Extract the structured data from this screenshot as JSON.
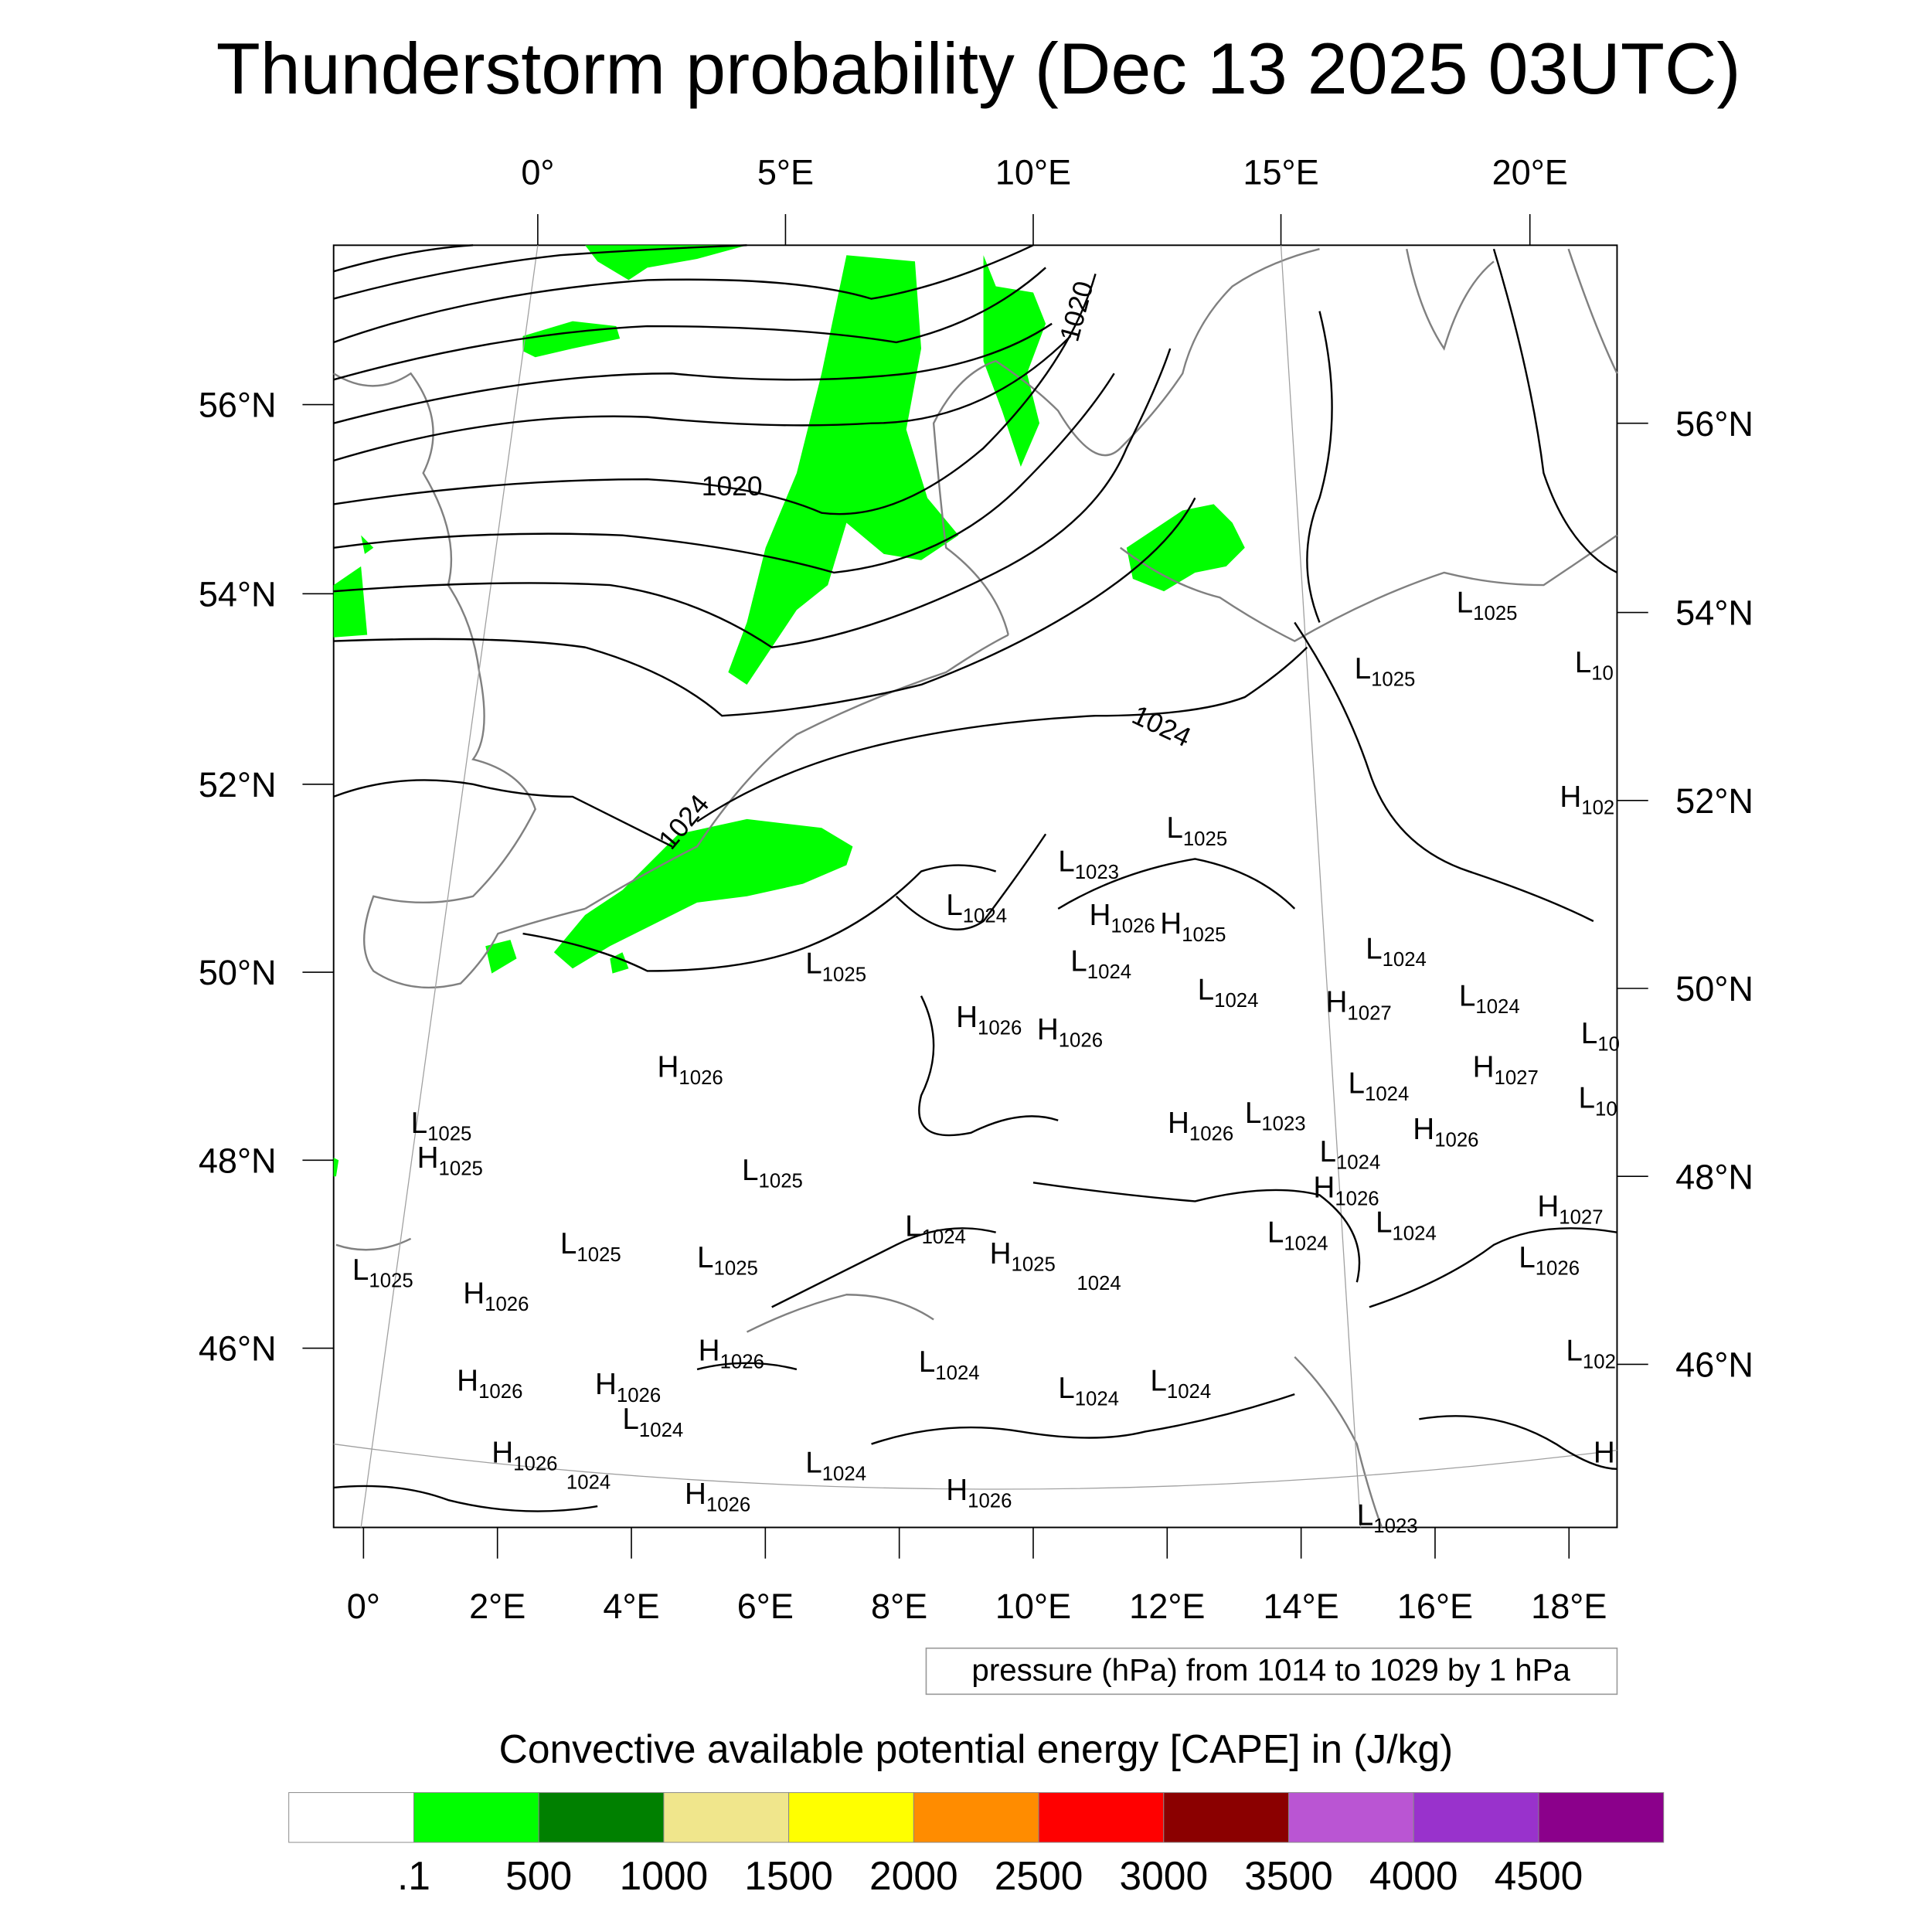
{
  "title": "Thunderstorm probability (Dec 13 2025 03UTC)",
  "chart_data": {
    "type": "map",
    "title": "Thunderstorm probability (Dec 13 2025 03UTC)",
    "top_lon_ticks": [
      "0°",
      "5°E",
      "10°E",
      "15°E",
      "20°E"
    ],
    "bottom_lon_ticks": [
      "0°",
      "2°E",
      "4°E",
      "6°E",
      "8°E",
      "10°E",
      "12°E",
      "14°E",
      "16°E",
      "18°E"
    ],
    "left_lat_ticks": [
      "56°N",
      "54°N",
      "52°N",
      "50°N",
      "48°N",
      "46°N"
    ],
    "right_lat_ticks": [
      "56°N",
      "54°N",
      "52°N",
      "50°N",
      "48°N",
      "46°N"
    ],
    "contour_info": "pressure (hPa) from 1014 to 1029 by 1 hPa",
    "contour_labels": [
      "1020",
      "1020",
      "1024",
      "1024"
    ],
    "pressure_centers": [
      {
        "t": "L",
        "v": "1025"
      },
      {
        "t": "L",
        "v": "1025"
      },
      {
        "t": "L",
        "v": "10"
      },
      {
        "t": "H",
        "v": "102"
      },
      {
        "t": "L",
        "v": "1025"
      },
      {
        "t": "L",
        "v": "1023"
      },
      {
        "t": "L",
        "v": "1024"
      },
      {
        "t": "H",
        "v": "1026"
      },
      {
        "t": "H",
        "v": "1025"
      },
      {
        "t": "L",
        "v": "1025"
      },
      {
        "t": "L",
        "v": "1024"
      },
      {
        "t": "L",
        "v": "1024"
      },
      {
        "t": "L",
        "v": "1024"
      },
      {
        "t": "H",
        "v": "1027"
      },
      {
        "t": "L",
        "v": "1024"
      },
      {
        "t": "H",
        "v": "1026"
      },
      {
        "t": "H",
        "v": "1026"
      },
      {
        "t": "L",
        "v": "10"
      },
      {
        "t": "H",
        "v": "1026"
      },
      {
        "t": "H",
        "v": "1027"
      },
      {
        "t": "L",
        "v": "1024"
      },
      {
        "t": "L",
        "v": "10"
      },
      {
        "t": "L",
        "v": "1025"
      },
      {
        "t": "H",
        "v": "1025"
      },
      {
        "t": "H",
        "v": "1026"
      },
      {
        "t": "L",
        "v": "1023"
      },
      {
        "t": "H",
        "v": "1026"
      },
      {
        "t": "L",
        "v": "1024"
      },
      {
        "t": "L",
        "v": "1025"
      },
      {
        "t": "H",
        "v": "1026"
      },
      {
        "t": "H",
        "v": "1027"
      },
      {
        "t": "L",
        "v": "1024"
      },
      {
        "t": "L",
        "v": "1024"
      },
      {
        "t": "L",
        "v": "1024"
      },
      {
        "t": "L",
        "v": "1025"
      },
      {
        "t": "L",
        "v": "1025"
      },
      {
        "t": "H",
        "v": "1025"
      },
      {
        "t": "",
        "v": "1024"
      },
      {
        "t": "L",
        "v": "1026"
      },
      {
        "t": "L",
        "v": "1025"
      },
      {
        "t": "H",
        "v": "1026"
      },
      {
        "t": "H",
        "v": "1026"
      },
      {
        "t": "L",
        "v": "1024"
      },
      {
        "t": "L",
        "v": "102"
      },
      {
        "t": "H",
        "v": "1026"
      },
      {
        "t": "H",
        "v": "1026"
      },
      {
        "t": "L",
        "v": "1024"
      },
      {
        "t": "L",
        "v": "1024"
      },
      {
        "t": "L",
        "v": "1024"
      },
      {
        "t": "H",
        "v": "1026"
      },
      {
        "t": "",
        "v": "1024"
      },
      {
        "t": "L",
        "v": "1024"
      },
      {
        "t": "H",
        "v": "1026"
      },
      {
        "t": "H",
        "v": "1026"
      },
      {
        "t": "L",
        "v": "1023"
      },
      {
        "t": "H",
        "v": ""
      }
    ],
    "colorbar": {
      "title": "Convective available potential energy [CAPE] in (J/kg)",
      "labels": [
        ".1",
        "500",
        "1000",
        "1500",
        "2000",
        "2500",
        "3000",
        "3500",
        "4000",
        "4500"
      ],
      "colors": [
        "#ffffff",
        "#00ff00",
        "#008000",
        "#f0e68c",
        "#ffff00",
        "#ff8c00",
        "#ff0000",
        "#8b0000",
        "#ba55d3",
        "#9932cc",
        "#8b008b"
      ]
    },
    "cape_fill_color": "#00ff00"
  }
}
